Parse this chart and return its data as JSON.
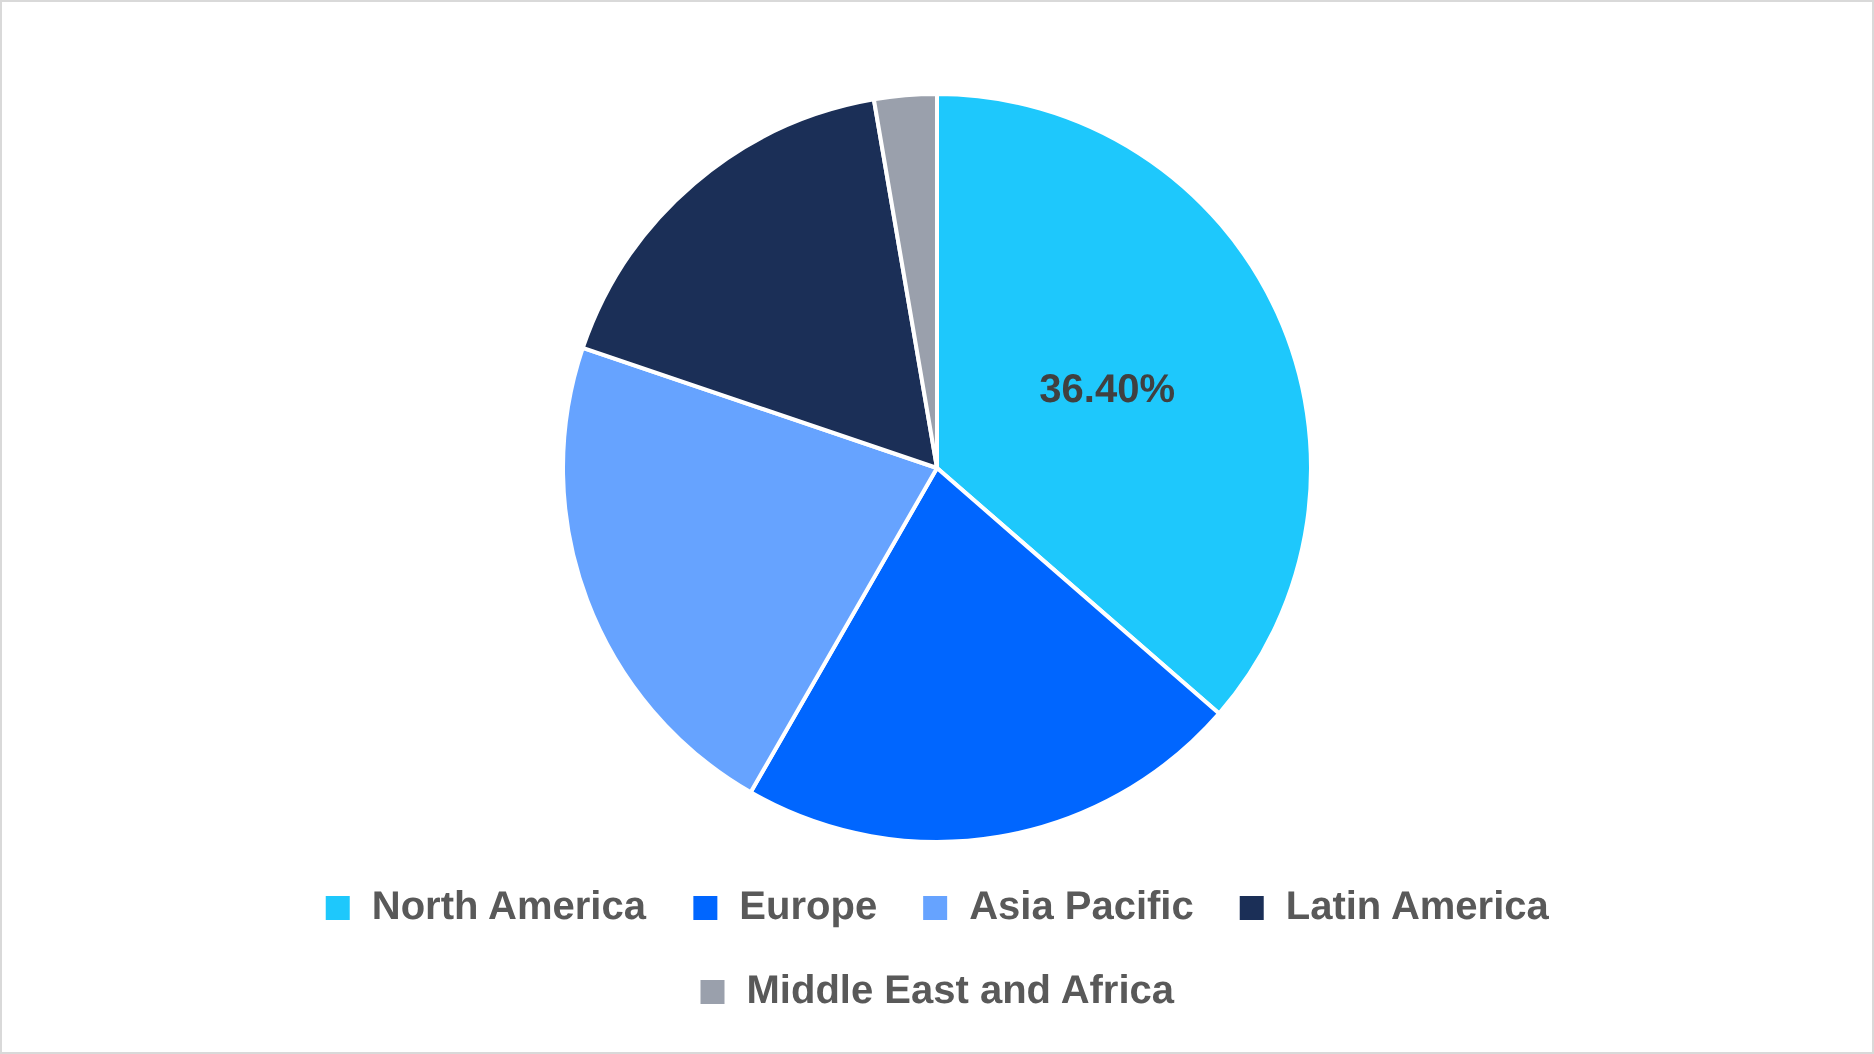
{
  "chart_data": {
    "type": "pie",
    "categories": [
      "North America",
      "Europe",
      "Asia Pacific",
      "Latin America",
      "Middle East and Africa"
    ],
    "values": [
      36.4,
      21.9,
      21.9,
      17.1,
      2.7
    ],
    "value_labels": [
      "36.40%",
      null,
      null,
      null,
      null
    ],
    "colors": [
      "#1ec8fc",
      "#0066ff",
      "#66a3ff",
      "#1b2f57",
      "#9aa0ac"
    ],
    "legend": "bottom"
  }
}
